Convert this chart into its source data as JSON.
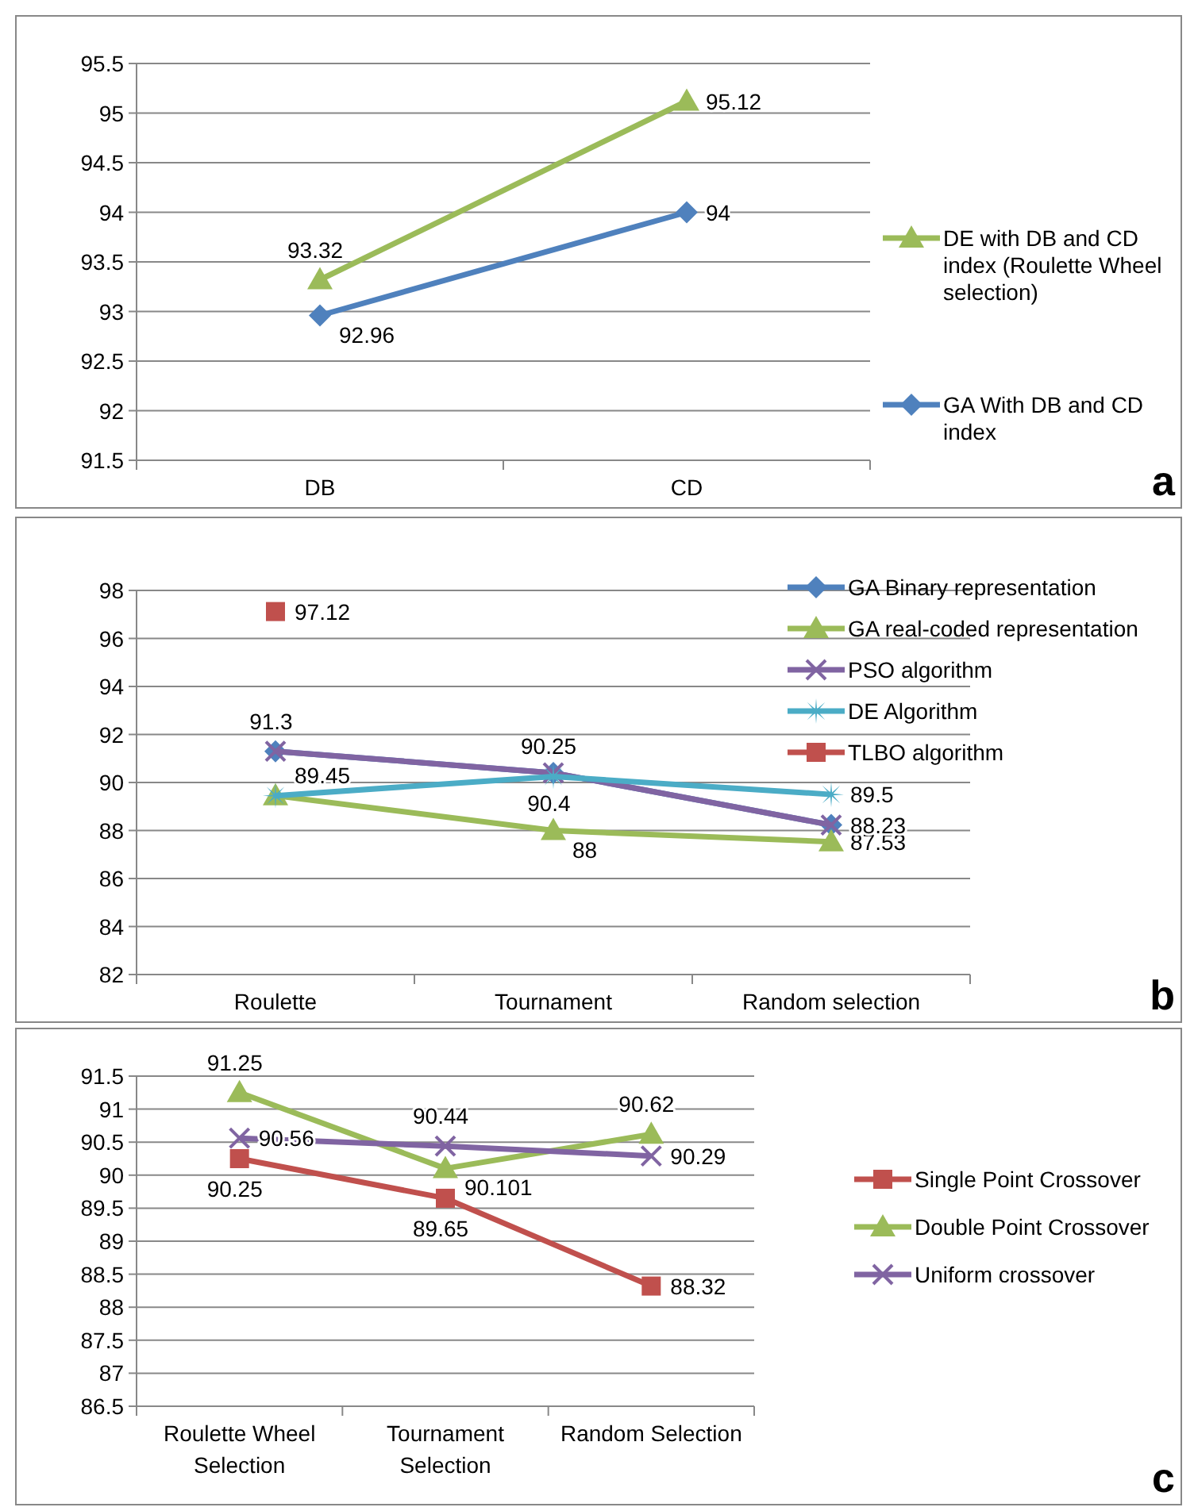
{
  "chart_data": [
    {
      "type": "line",
      "categories": [
        "DB",
        "CD"
      ],
      "ylim": [
        91.5,
        95.5
      ],
      "yticks": [
        91.5,
        92,
        92.5,
        93,
        93.5,
        94,
        94.5,
        95,
        95.5
      ],
      "grid": "y",
      "legend": "right",
      "data_labels": true,
      "annotations": [
        "a"
      ],
      "series": [
        {
          "name": "DE with DB and CD index (Roulette Wheel selection)",
          "color": "#9bbb59",
          "marker": "triangle",
          "values": [
            93.32,
            95.12
          ]
        },
        {
          "name": "GA  With DB and CD index",
          "color": "#4f81bd",
          "marker": "diamond",
          "values": [
            92.96,
            94
          ]
        }
      ]
    },
    {
      "type": "line",
      "categories": [
        "Roulette",
        "Tournament",
        "Random selection"
      ],
      "ylim": [
        82,
        98
      ],
      "yticks": [
        82,
        84,
        86,
        88,
        90,
        92,
        94,
        96,
        98
      ],
      "grid": "y",
      "legend": "top right",
      "annotations": [
        "b"
      ],
      "series": [
        {
          "name": "GA Binary representation",
          "color": "#4f81bd",
          "marker": "diamond",
          "values": [
            91.3,
            90.4,
            88.23
          ],
          "value_labels": [
            "91.3",
            "90.4",
            "88.23"
          ]
        },
        {
          "name": "GA real-coded representation",
          "color": "#9bbb59",
          "marker": "triangle",
          "values": [
            89.45,
            88,
            87.53
          ],
          "value_labels": [
            "89.45",
            "88",
            "87.53"
          ]
        },
        {
          "name": "PSO algorithm",
          "color": "#8064a2",
          "marker": "cross",
          "values": [
            91.3,
            90.4,
            88.23
          ],
          "value_labels": [
            null,
            null,
            null
          ]
        },
        {
          "name": "DE Algorithm",
          "color": "#4bacc6",
          "marker": "star",
          "values": [
            89.45,
            90.25,
            89.5
          ],
          "value_labels": [
            null,
            "90.25",
            "89.5"
          ]
        },
        {
          "name": "TLBO algorithm",
          "color": "#c0504d",
          "marker": "square",
          "values": [
            97.12,
            null,
            null
          ],
          "value_labels": [
            "97.12",
            null,
            null
          ]
        }
      ]
    },
    {
      "type": "line",
      "categories": [
        "Roulette Wheel Selection",
        "Tournament Selection",
        "Random Selection"
      ],
      "ylim": [
        86.5,
        91.5
      ],
      "yticks": [
        86.5,
        87,
        87.5,
        88,
        88.5,
        89,
        89.5,
        90,
        90.5,
        91,
        91.5
      ],
      "grid": "y",
      "legend": "right",
      "data_labels": true,
      "annotations": [
        "c"
      ],
      "series": [
        {
          "name": "Single Point Crossover",
          "color": "#c0504d",
          "marker": "square",
          "values": [
            90.25,
            89.65,
            88.32
          ]
        },
        {
          "name": "Double Point Crossover",
          "color": "#9bbb59",
          "marker": "triangle",
          "values": [
            91.25,
            90.101,
            90.62
          ]
        },
        {
          "name": "Uniform crossover",
          "color": "#8064a2",
          "marker": "cross",
          "values": [
            90.56,
            90.44,
            90.29
          ]
        }
      ]
    }
  ]
}
